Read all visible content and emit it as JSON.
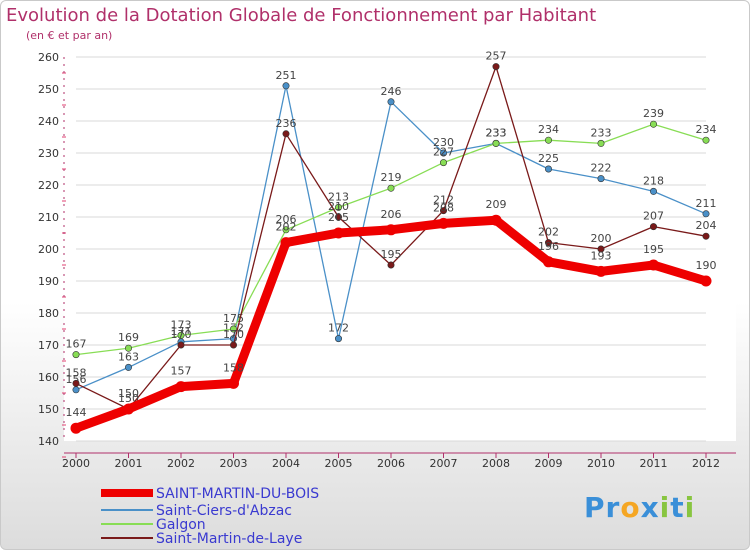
{
  "chart_data": {
    "type": "line",
    "title": "Evolution de la Dotation Globale de Fonctionnement par Habitant",
    "subtitle": "(en € et par an)",
    "x": [
      "2000",
      "2001",
      "2002",
      "2003",
      "2004",
      "2005",
      "2006",
      "2007",
      "2008",
      "2009",
      "2010",
      "2011",
      "2012"
    ],
    "ylim": [
      140,
      260
    ],
    "yticks": [
      140,
      150,
      160,
      170,
      180,
      190,
      200,
      210,
      220,
      230,
      240,
      250,
      260
    ],
    "series": [
      {
        "name": "Saint-Ciers-d'Abzac",
        "color": "#4a90c8",
        "values": [
          156,
          163,
          171,
          172,
          251,
          172,
          246,
          230,
          233,
          225,
          222,
          218,
          211
        ]
      },
      {
        "name": "Galgon",
        "color": "#88dd55",
        "values": [
          167,
          169,
          173,
          175,
          206,
          213,
          219,
          227,
          233,
          234,
          233,
          239,
          234
        ]
      },
      {
        "name": "Saint-Martin-de-Laye",
        "color": "#7a1a1a",
        "values": [
          158,
          150,
          170,
          170,
          236,
          210,
          195,
          212,
          257,
          202,
          200,
          207,
          204
        ]
      },
      {
        "name": "SAINT-MARTIN-DU-BOIS",
        "color": "#ee0000",
        "values": [
          144,
          150,
          157,
          158,
          202,
          205,
          206,
          208,
          209,
          196,
          193,
          195,
          190
        ]
      }
    ],
    "legend": [
      "SAINT-MARTIN-DU-BOIS",
      "Saint-Ciers-d'Abzac",
      "Galgon",
      "Saint-Martin-de-Laye"
    ]
  },
  "logo": {
    "text": "Proxiti",
    "letters": [
      "P",
      "r",
      "o",
      "x",
      "i",
      "t",
      "i"
    ],
    "colors": [
      "#3a8fd8",
      "#3a8fd8",
      "#f5a623",
      "#3a8fd8",
      "#88c540",
      "#3a8fd8",
      "#88c540"
    ]
  }
}
